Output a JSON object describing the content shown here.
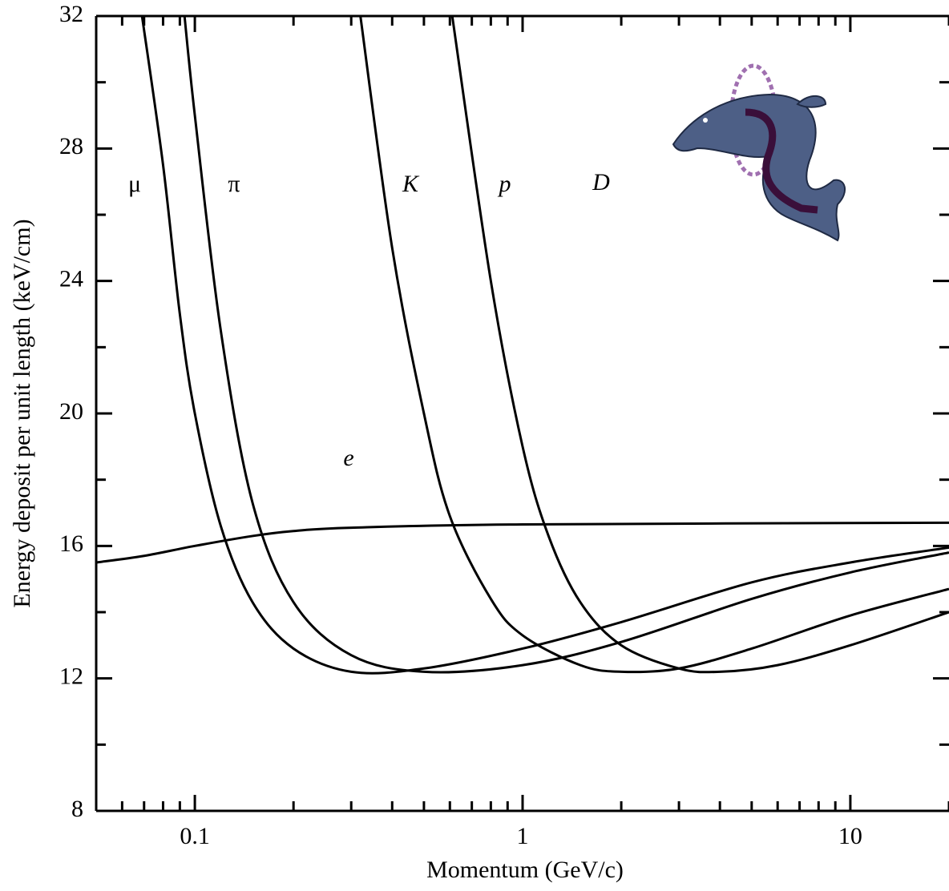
{
  "chart_data": {
    "type": "line",
    "xlabel": "Momentum (GeV/c)",
    "ylabel": "Energy deposit per unit length (keV/cm)",
    "xscale": "log",
    "xlim": [
      0.05,
      20
    ],
    "ylim": [
      8,
      32
    ],
    "xticks": [
      0.1,
      1,
      10
    ],
    "xminorticks": [
      0.06,
      0.07,
      0.08,
      0.09,
      0.2,
      0.3,
      0.4,
      0.5,
      0.6,
      0.7,
      0.8,
      0.9,
      2,
      3,
      4,
      5,
      6,
      7,
      8,
      9,
      20
    ],
    "yticks": [
      8,
      12,
      16,
      20,
      24,
      28,
      32
    ],
    "yminorticks": [
      10,
      14,
      18,
      22,
      26,
      30
    ],
    "annotations": [
      {
        "text": "μ"
      },
      {
        "text": "π"
      },
      {
        "text": "K"
      },
      {
        "text": "p"
      },
      {
        "text": "D"
      },
      {
        "text": "e"
      }
    ],
    "series": [
      {
        "color": "#000000",
        "x": [
          0.069,
          0.08,
          0.09,
          0.1,
          0.12,
          0.15,
          0.2,
          0.3,
          0.5,
          1,
          2,
          5,
          10,
          20
        ],
        "values": [
          32,
          27.5,
          23,
          20,
          16.6,
          14.3,
          12.9,
          12.2,
          12.3,
          12.9,
          13.7,
          14.9,
          15.5,
          15.95
        ]
      },
      {
        "color": "#000000",
        "x": [
          0.093,
          0.1,
          0.12,
          0.15,
          0.2,
          0.3,
          0.5,
          1,
          2,
          5,
          10,
          20
        ],
        "values": [
          32,
          29,
          22.5,
          17.3,
          14.3,
          12.7,
          12.2,
          12.4,
          13.1,
          14.4,
          15.2,
          15.8
        ]
      },
      {
        "color": "#000000",
        "x": [
          0.32,
          0.4,
          0.5,
          0.6,
          0.8,
          1,
          1.5,
          2,
          3,
          5,
          10,
          20
        ],
        "values": [
          32,
          25,
          20,
          16.9,
          14.4,
          13.3,
          12.4,
          12.2,
          12.3,
          12.9,
          13.9,
          14.7
        ]
      },
      {
        "color": "#000000",
        "x": [
          0.61,
          0.8,
          1,
          1.2,
          1.5,
          2,
          3,
          4,
          6,
          10,
          20
        ],
        "values": [
          32,
          24,
          19,
          16.3,
          14.3,
          13,
          12.3,
          12.2,
          12.4,
          13,
          14
        ]
      },
      {
        "color": "#000000",
        "x": [
          0.05,
          0.07,
          0.1,
          0.15,
          0.2,
          0.3,
          1,
          20
        ],
        "values": [
          15.5,
          15.7,
          16,
          16.3,
          16.45,
          16.55,
          16.65,
          16.7
        ]
      }
    ]
  }
}
